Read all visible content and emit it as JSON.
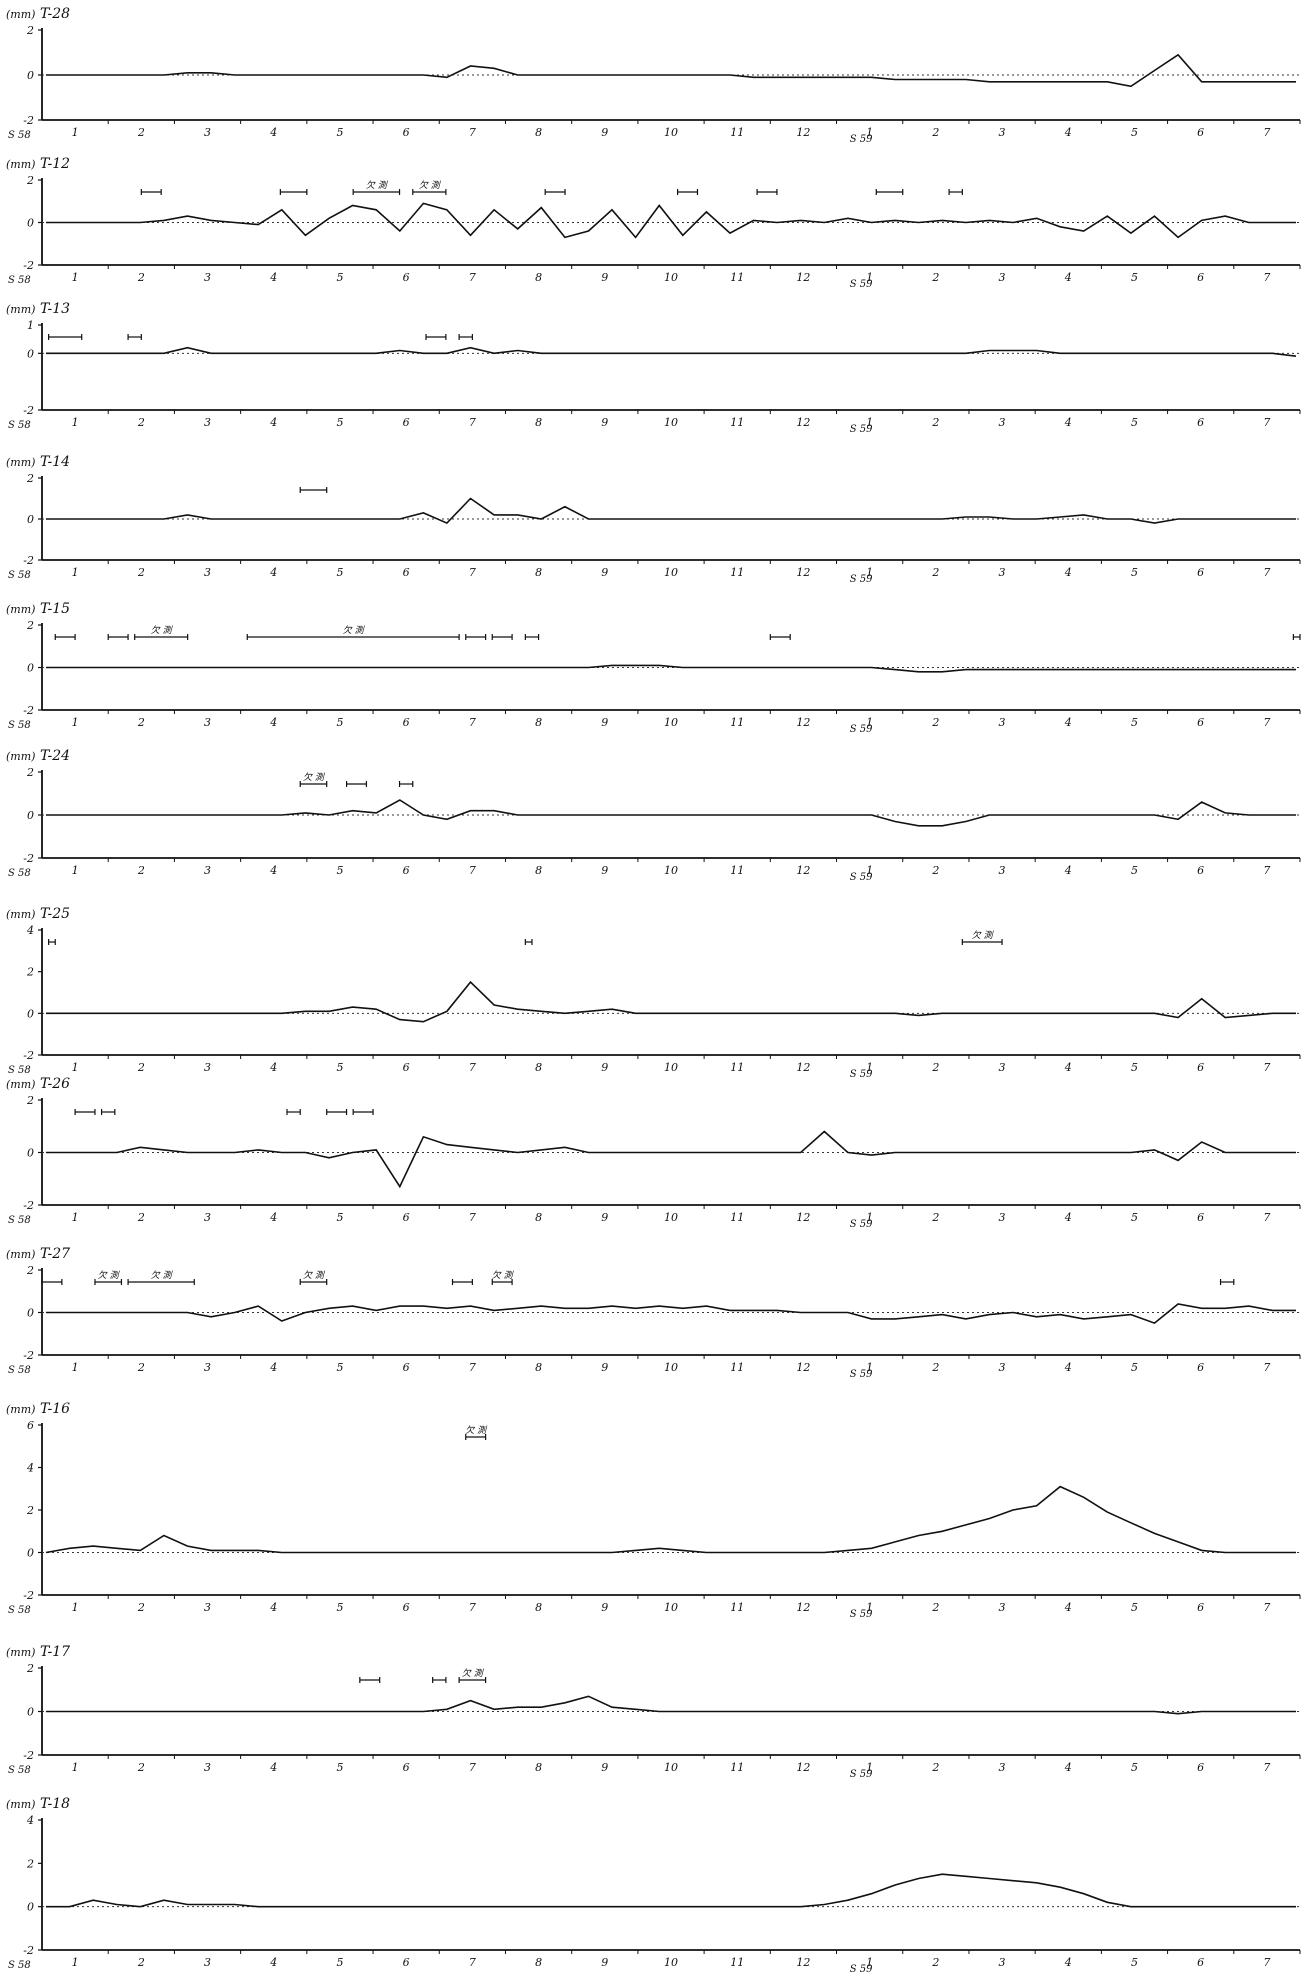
{
  "unit_label": "(mm)",
  "year_labels": [
    "S 58",
    "S 59"
  ],
  "month_labels_1": [
    "1",
    "2",
    "3",
    "4",
    "5",
    "6",
    "7",
    "8",
    "9",
    "10",
    "11",
    "12"
  ],
  "month_labels_2": [
    "1",
    "2",
    "3",
    "4",
    "5",
    "6",
    "7"
  ],
  "annotation_text": "欠 測",
  "chart_data": [
    {
      "type": "line",
      "title": "T-28",
      "ylim": [
        -2,
        2
      ],
      "yticks": [
        -2,
        0,
        2
      ],
      "series": [
        {
          "values": [
            0,
            0,
            0,
            0,
            0,
            0,
            0.1,
            0.1,
            0,
            0,
            0,
            0,
            0,
            0,
            0,
            0,
            0,
            -0.1,
            0.4,
            0.3,
            0,
            0,
            0,
            0,
            0,
            0,
            0,
            0,
            0,
            0,
            -0.1,
            -0.1,
            -0.1,
            -0.1,
            -0.1,
            -0.1,
            -0.2,
            -0.2,
            -0.2,
            -0.2,
            -0.3,
            -0.3,
            -0.3,
            -0.3,
            -0.3,
            -0.3,
            -0.5,
            0.2,
            0.9,
            -0.3,
            -0.3,
            -0.3,
            -0.3,
            -0.3
          ]
        }
      ],
      "annotations": []
    },
    {
      "type": "line",
      "title": "T-12",
      "ylim": [
        -2,
        2
      ],
      "yticks": [
        -2,
        0,
        2
      ],
      "series": [
        {
          "values": [
            0,
            0,
            0,
            0,
            0,
            0.1,
            0.3,
            0.1,
            0,
            -0.1,
            0.6,
            -0.6,
            0.2,
            0.8,
            0.6,
            -0.4,
            0.9,
            0.6,
            -0.6,
            0.6,
            -0.3,
            0.7,
            -0.7,
            -0.4,
            0.6,
            -0.7,
            0.8,
            -0.6,
            0.5,
            -0.5,
            0.1,
            0,
            0.1,
            0,
            0.2,
            0,
            0.1,
            0,
            0.1,
            0,
            0.1,
            0,
            0.2,
            -0.2,
            -0.4,
            0.3,
            -0.5,
            0.3,
            -0.7,
            0.1,
            0.3,
            0,
            0,
            0
          ]
        }
      ],
      "annotations": [
        {
          "x": [
            1.5,
            1.8
          ]
        },
        {
          "x": [
            3.6,
            4.0
          ]
        },
        {
          "x": [
            4.7,
            5.4
          ],
          "label": true
        },
        {
          "x": [
            5.6,
            6.1
          ],
          "label": true
        },
        {
          "x": [
            7.6,
            7.9
          ]
        },
        {
          "x": [
            9.6,
            9.9
          ]
        },
        {
          "x": [
            10.8,
            11.1
          ]
        },
        {
          "x": [
            12.6,
            13.0
          ]
        },
        {
          "x": [
            13.7,
            13.9
          ]
        }
      ]
    },
    {
      "type": "line",
      "title": "T-13",
      "ylim": [
        -2,
        1
      ],
      "yticks": [
        -2,
        0,
        1
      ],
      "series": [
        {
          "values": [
            0,
            0,
            0,
            0,
            0,
            0,
            0.2,
            0,
            0,
            0,
            0,
            0,
            0,
            0,
            0,
            0.1,
            0,
            0,
            0.2,
            0,
            0.1,
            0,
            0,
            0,
            0,
            0,
            0,
            0,
            0,
            0,
            0,
            0,
            0,
            0,
            0,
            0,
            0,
            0,
            0,
            0,
            0.1,
            0.1,
            0.1,
            0,
            0,
            0,
            0,
            0,
            0,
            0,
            0,
            0,
            0,
            -0.1
          ]
        }
      ],
      "annotations": [
        {
          "x": [
            0.1,
            0.6
          ]
        },
        {
          "x": [
            1.3,
            1.5
          ]
        },
        {
          "x": [
            5.8,
            6.1
          ]
        },
        {
          "x": [
            6.3,
            6.5
          ]
        }
      ]
    },
    {
      "type": "line",
      "title": "T-14",
      "ylim": [
        -2,
        2
      ],
      "yticks": [
        -2,
        0,
        2
      ],
      "series": [
        {
          "values": [
            0,
            0,
            0,
            0,
            0,
            0,
            0.2,
            0,
            0,
            0,
            0,
            0,
            0,
            0,
            0,
            0,
            0.3,
            -0.2,
            1.0,
            0.2,
            0.2,
            0,
            0.6,
            0,
            0,
            0,
            0,
            0,
            0,
            0,
            0,
            0,
            0,
            0,
            0,
            0,
            0,
            0,
            0,
            0.1,
            0.1,
            0,
            0,
            0.1,
            0.2,
            0,
            0,
            -0.2,
            0,
            0,
            0,
            0,
            0,
            0
          ]
        }
      ],
      "annotations": [
        {
          "x": [
            3.9,
            4.3
          ]
        }
      ]
    },
    {
      "type": "line",
      "title": "T-15",
      "ylim": [
        -2,
        2
      ],
      "yticks": [
        -2,
        0,
        2
      ],
      "series": [
        {
          "values": [
            0,
            0,
            0,
            0,
            0,
            0,
            0,
            0,
            0,
            0,
            0,
            0,
            0,
            0,
            0,
            0,
            0,
            0,
            0,
            0,
            0,
            0,
            0,
            0,
            0.1,
            0.1,
            0.1,
            0,
            0,
            0,
            0,
            0,
            0,
            0,
            0,
            0,
            -0.1,
            -0.2,
            -0.2,
            -0.1,
            -0.1,
            -0.1,
            -0.1,
            -0.1,
            -0.1,
            -0.1,
            -0.1,
            -0.1,
            -0.1,
            -0.1,
            -0.1,
            -0.1,
            -0.1,
            -0.1
          ]
        }
      ],
      "annotations": [
        {
          "x": [
            0.2,
            0.5
          ]
        },
        {
          "x": [
            1.0,
            1.3
          ]
        },
        {
          "x": [
            1.4,
            2.2
          ],
          "label": true
        },
        {
          "x": [
            3.1,
            6.3
          ],
          "label": true
        },
        {
          "x": [
            6.4,
            6.7
          ]
        },
        {
          "x": [
            6.8,
            7.1
          ]
        },
        {
          "x": [
            7.3,
            7.5
          ]
        },
        {
          "x": [
            11.0,
            11.3
          ]
        },
        {
          "x": [
            18.9,
            19.0
          ]
        }
      ]
    },
    {
      "type": "line",
      "title": "T-24",
      "ylim": [
        -2,
        2
      ],
      "yticks": [
        -2,
        0,
        2
      ],
      "series": [
        {
          "values": [
            0,
            0,
            0,
            0,
            0,
            0,
            0,
            0,
            0,
            0,
            0,
            0.1,
            0,
            0.2,
            0.1,
            0.7,
            0,
            -0.2,
            0.2,
            0.2,
            0,
            0,
            0,
            0,
            0,
            0,
            0,
            0,
            0,
            0,
            0,
            0,
            0,
            0,
            0,
            0,
            -0.3,
            -0.5,
            -0.5,
            -0.3,
            0,
            0,
            0,
            0,
            0,
            0,
            0,
            0,
            -0.2,
            0.6,
            0.1,
            0,
            0,
            0
          ]
        }
      ],
      "annotations": [
        {
          "x": [
            3.9,
            4.3
          ],
          "label": true
        },
        {
          "x": [
            4.6,
            4.9
          ]
        },
        {
          "x": [
            5.4,
            5.6
          ]
        }
      ]
    },
    {
      "type": "line",
      "title": "T-25",
      "ylim": [
        -2,
        4
      ],
      "yticks": [
        -2,
        0,
        2,
        4
      ],
      "series": [
        {
          "values": [
            0,
            0,
            0,
            0,
            0,
            0,
            0,
            0,
            0,
            0,
            0,
            0.1,
            0.1,
            0.3,
            0.2,
            -0.3,
            -0.4,
            0.1,
            1.5,
            0.4,
            0.2,
            0.1,
            0,
            0.1,
            0.2,
            0,
            0,
            0,
            0,
            0,
            0,
            0,
            0,
            0,
            0,
            0,
            0,
            -0.1,
            0,
            0,
            0,
            0,
            0,
            0,
            0,
            0,
            0,
            0,
            -0.2,
            0.7,
            -0.2,
            -0.1,
            0,
            0
          ]
        }
      ],
      "annotations": [
        {
          "x": [
            0.1,
            0.2
          ]
        },
        {
          "x": [
            7.3,
            7.4
          ]
        },
        {
          "x": [
            13.9,
            14.5
          ],
          "label": true
        }
      ]
    },
    {
      "type": "line",
      "title": "T-26",
      "ylim": [
        -2,
        2
      ],
      "yticks": [
        -2,
        0,
        2
      ],
      "series": [
        {
          "values": [
            0,
            0,
            0,
            0,
            0.2,
            0.1,
            0,
            0,
            0,
            0.1,
            0,
            0,
            -0.2,
            0,
            0.1,
            -1.3,
            0.6,
            0.3,
            0.2,
            0.1,
            0,
            0.1,
            0.2,
            0,
            0,
            0,
            0,
            0,
            0,
            0,
            0,
            0,
            0,
            0.8,
            0,
            -0.1,
            0,
            0,
            0,
            0,
            0,
            0,
            0,
            0,
            0,
            0,
            0,
            0.1,
            -0.3,
            0.4,
            0,
            0,
            0,
            0
          ]
        }
      ],
      "annotations": [
        {
          "x": [
            0.5,
            0.8
          ]
        },
        {
          "x": [
            0.9,
            1.1
          ]
        },
        {
          "x": [
            3.7,
            3.9
          ]
        },
        {
          "x": [
            4.3,
            4.6
          ]
        },
        {
          "x": [
            4.7,
            5.0
          ]
        }
      ]
    },
    {
      "type": "line",
      "title": "T-27",
      "ylim": [
        -2,
        2
      ],
      "yticks": [
        -2,
        0,
        2
      ],
      "series": [
        {
          "values": [
            0,
            0,
            0,
            0,
            0,
            0,
            0,
            -0.2,
            0,
            0.3,
            -0.4,
            0,
            0.2,
            0.3,
            0.1,
            0.3,
            0.3,
            0.2,
            0.3,
            0.1,
            0.2,
            0.3,
            0.2,
            0.2,
            0.3,
            0.2,
            0.3,
            0.2,
            0.3,
            0.1,
            0.1,
            0.1,
            0,
            0,
            0,
            -0.3,
            -0.3,
            -0.2,
            -0.1,
            -0.3,
            -0.1,
            0,
            -0.2,
            -0.1,
            -0.3,
            -0.2,
            -0.1,
            -0.5,
            0.4,
            0.2,
            0.2,
            0.3,
            0.1,
            0.1
          ]
        }
      ],
      "annotations": [
        {
          "x": [
            0.0,
            0.3
          ]
        },
        {
          "x": [
            0.8,
            1.2
          ],
          "label": true
        },
        {
          "x": [
            1.3,
            2.3
          ],
          "label": true
        },
        {
          "x": [
            3.9,
            4.3
          ],
          "label": true
        },
        {
          "x": [
            6.2,
            6.5
          ]
        },
        {
          "x": [
            6.8,
            7.1
          ],
          "label": true
        },
        {
          "x": [
            17.8,
            18.0
          ]
        }
      ]
    },
    {
      "type": "line",
      "title": "T-16",
      "ylim": [
        -2,
        6
      ],
      "yticks": [
        -2,
        0,
        2,
        4,
        6
      ],
      "series": [
        {
          "values": [
            0,
            0.2,
            0.3,
            0.2,
            0.1,
            0.8,
            0.3,
            0.1,
            0.1,
            0.1,
            0,
            0,
            0,
            0,
            0,
            0,
            0,
            0,
            0,
            0,
            0,
            0,
            0,
            0,
            0,
            0.1,
            0.2,
            0.1,
            0,
            0,
            0,
            0,
            0,
            0,
            0.1,
            0.2,
            0.5,
            0.8,
            1.0,
            1.3,
            1.6,
            2.0,
            2.2,
            3.1,
            2.6,
            1.9,
            1.4,
            0.9,
            0.5,
            0.1,
            0,
            0,
            0,
            0
          ]
        }
      ],
      "annotations": [
        {
          "x": [
            6.4,
            6.7
          ],
          "label": true
        }
      ]
    },
    {
      "type": "line",
      "title": "T-17",
      "ylim": [
        -2,
        2
      ],
      "yticks": [
        -2,
        0,
        2
      ],
      "series": [
        {
          "values": [
            0,
            0,
            0,
            0,
            0,
            0,
            0,
            0,
            0,
            0,
            0,
            0,
            0,
            0,
            0,
            0,
            0,
            0.1,
            0.5,
            0.1,
            0.2,
            0.2,
            0.4,
            0.7,
            0.2,
            0.1,
            0,
            0,
            0,
            0,
            0,
            0,
            0,
            0,
            0,
            0,
            0,
            0,
            0,
            0,
            0,
            0,
            0,
            0,
            0,
            0,
            0,
            0,
            -0.1,
            0,
            0,
            0,
            0,
            0
          ]
        }
      ],
      "annotations": [
        {
          "x": [
            4.8,
            5.1
          ]
        },
        {
          "x": [
            5.9,
            6.1
          ]
        },
        {
          "x": [
            6.3,
            6.7
          ],
          "label": true
        }
      ]
    },
    {
      "type": "line",
      "title": "T-18",
      "ylim": [
        -2,
        4
      ],
      "yticks": [
        -2,
        0,
        2,
        4
      ],
      "series": [
        {
          "values": [
            0,
            0,
            0.3,
            0.1,
            0,
            0.3,
            0.1,
            0.1,
            0.1,
            0,
            0,
            0,
            0,
            0,
            0,
            0,
            0,
            0,
            0,
            0,
            0,
            0,
            0,
            0,
            0,
            0,
            0,
            0,
            0,
            0,
            0,
            0,
            0,
            0.1,
            0.3,
            0.6,
            1.0,
            1.3,
            1.5,
            1.4,
            1.3,
            1.2,
            1.1,
            0.9,
            0.6,
            0.2,
            0,
            0,
            0,
            0,
            0,
            0,
            0,
            0
          ]
        }
      ],
      "annotations": []
    }
  ]
}
